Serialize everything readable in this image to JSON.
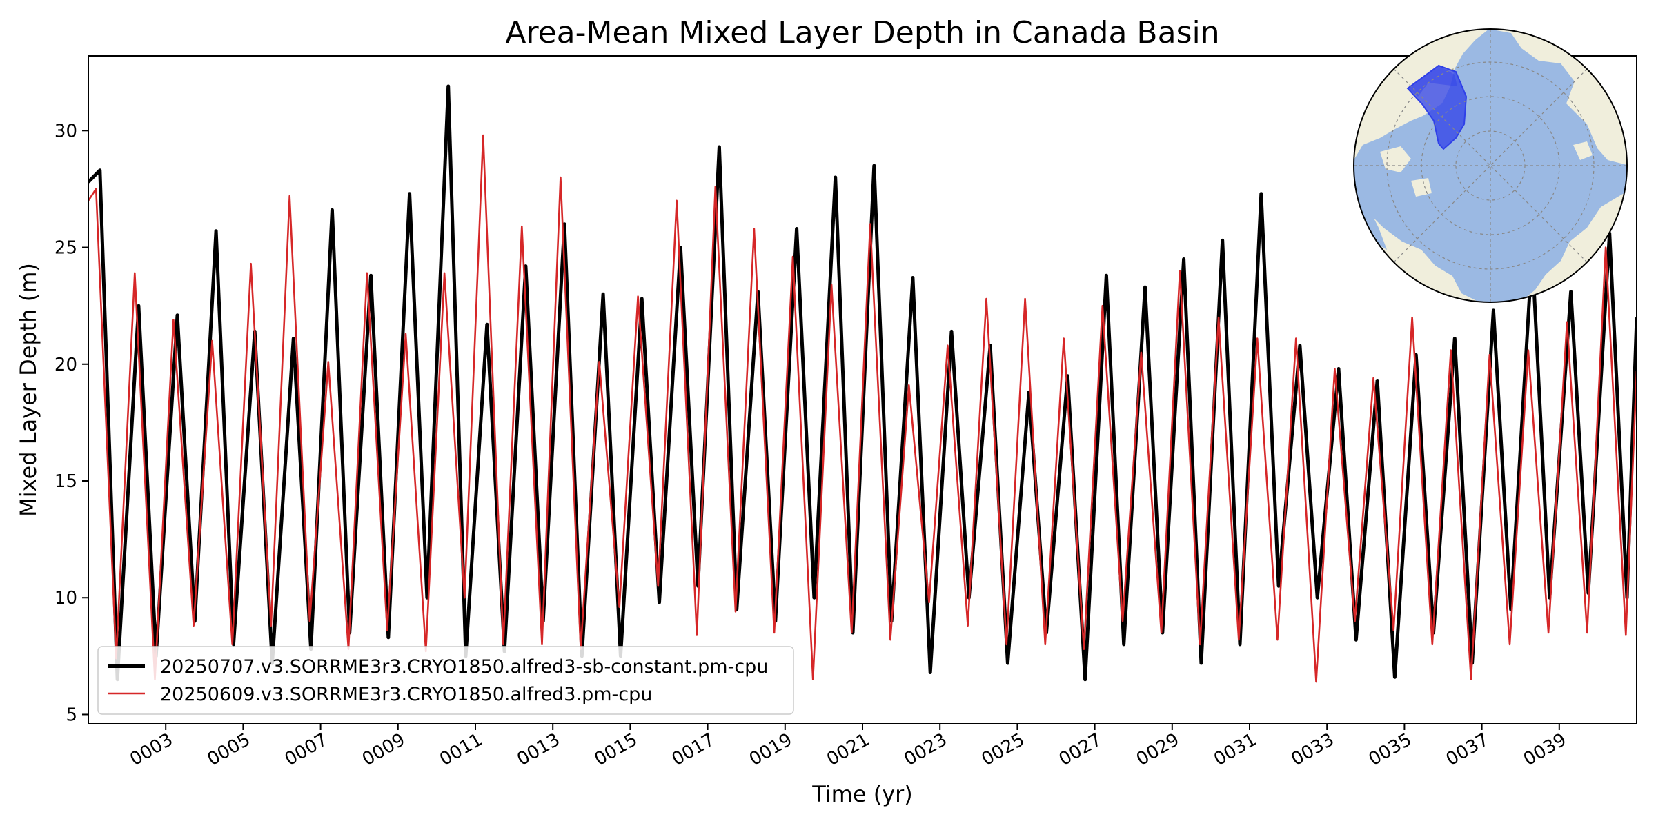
{
  "chart_data": {
    "type": "line",
    "title": "Area-Mean Mixed Layer Depth in Canada Basin",
    "xlabel": "Time (yr)",
    "ylabel": "Mixed Layer Depth (m)",
    "xlim": [
      1.0,
      41.0
    ],
    "ylim": [
      4.6,
      33.2
    ],
    "x_ticks": [
      3,
      5,
      7,
      9,
      11,
      13,
      15,
      17,
      19,
      21,
      23,
      25,
      27,
      29,
      31,
      33,
      35,
      37,
      39
    ],
    "x_tick_labels": [
      "0003",
      "0005",
      "0007",
      "0009",
      "0011",
      "0013",
      "0015",
      "0017",
      "0019",
      "0021",
      "0023",
      "0025",
      "0027",
      "0029",
      "0031",
      "0033",
      "0035",
      "0037",
      "0039"
    ],
    "y_ticks": [
      5,
      10,
      15,
      20,
      25,
      30
    ],
    "y_tick_labels": [
      "5",
      "10",
      "15",
      "20",
      "25",
      "30"
    ],
    "grid": false,
    "legend_position": "lower-left",
    "series": [
      {
        "name": "20250707.v3.SORRME3r3.CRYO1850.alfred3-sb-constant.pm-cpu",
        "color": "#000000",
        "x_start": 1.0,
        "peak_offset": 0.3,
        "trough_offset": 0.75,
        "peaks": [
          28.3,
          22.5,
          22.1,
          25.7,
          21.4,
          21.1,
          26.6,
          23.8,
          27.3,
          31.9,
          21.7,
          24.2,
          26.0,
          23.0,
          22.8,
          25.0,
          29.3,
          23.1,
          25.8,
          28.0,
          28.5,
          23.7,
          21.4,
          20.8,
          18.8,
          19.5,
          23.8,
          23.3,
          24.5,
          25.3,
          27.3,
          20.8,
          19.8,
          19.3,
          20.4,
          21.1,
          22.3,
          24.8,
          23.1,
          25.6
        ],
        "troughs": [
          6.5,
          7.5,
          9.0,
          8.0,
          7.2,
          7.8,
          8.5,
          8.3,
          10.0,
          7.5,
          7.7,
          9.0,
          7.5,
          7.5,
          9.8,
          10.5,
          9.5,
          9.0,
          10.0,
          8.5,
          9.0,
          6.8,
          10.0,
          7.2,
          8.5,
          6.5,
          8.0,
          8.5,
          7.2,
          8.0,
          10.5,
          10.0,
          8.2,
          6.6,
          8.5,
          7.2,
          9.5,
          10.0,
          10.2,
          10.0
        ],
        "x_end": 41.0,
        "y_end": 22.0
      },
      {
        "name": "20250609.v3.SORRME3r3.CRYO1850.alfred3.pm-cpu",
        "color": "#d62728",
        "x_start": 1.0,
        "peak_offset": 0.2,
        "trough_offset": 0.72,
        "peaks": [
          27.5,
          23.9,
          21.9,
          21.0,
          24.3,
          27.2,
          20.1,
          23.9,
          21.3,
          23.9,
          29.8,
          25.9,
          28.0,
          20.1,
          22.9,
          27.0,
          27.6,
          25.8,
          24.6,
          23.4,
          26.0,
          19.1,
          20.8,
          22.8,
          22.8,
          21.1,
          22.5,
          20.5,
          24.0,
          22.0,
          21.1,
          21.1,
          19.8,
          19.4,
          22.0,
          20.6,
          20.4,
          20.6,
          21.8,
          25.0
        ],
        "troughs": [
          7.4,
          6.5,
          8.8,
          8.0,
          8.8,
          9.0,
          7.8,
          8.6,
          7.7,
          10.0,
          8.0,
          8.0,
          7.8,
          9.6,
          10.5,
          8.4,
          9.4,
          8.5,
          6.5,
          8.5,
          8.2,
          9.8,
          8.8,
          8.0,
          8.0,
          7.8,
          9.0,
          8.5,
          8.0,
          8.2,
          8.2,
          6.4,
          9.0,
          8.6,
          8.0,
          6.5,
          8.0,
          8.5,
          8.5,
          8.4
        ],
        "x_end": 41.0,
        "y_end": 19.7
      }
    ]
  }
}
